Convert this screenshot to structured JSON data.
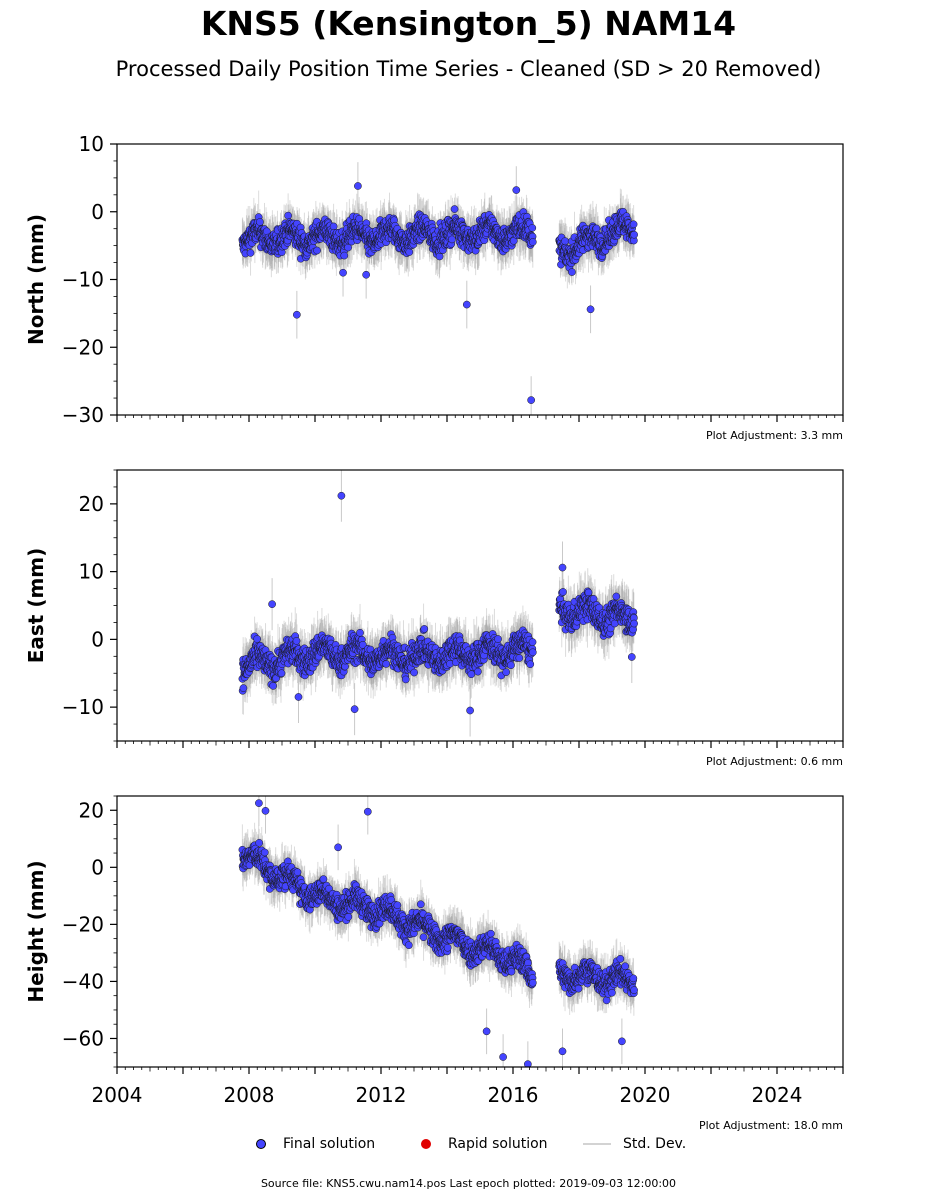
{
  "chart_data": {
    "type": "scatter",
    "title": "KNS5 (Kensington_5) NAM14",
    "subtitle": "Processed Daily Position Time Series - Cleaned (SD > 20 Removed)",
    "x_ticks": [
      2004,
      2008,
      2012,
      2016,
      2020,
      2024
    ],
    "xlim": [
      2004,
      2026
    ],
    "legend": [
      {
        "label": "Final solution",
        "color": "#4444ff"
      },
      {
        "label": "Rapid solution",
        "color": "#e00000"
      },
      {
        "label": "Std. Dev.",
        "color": "#d3d3d3"
      }
    ],
    "source_text": "Source file: KNS5.cwu.nam14.pos  Last epoch plotted: 2019-09-03 12:00:00",
    "panels": [
      {
        "ylabel": "North (mm)",
        "ylim": [
          -30,
          10
        ],
        "yticks": [
          10,
          0,
          -10,
          -20,
          -30
        ],
        "adjustment": "Plot Adjustment: 3.3 mm",
        "segments": [
          [
            2007.8,
            2016.6
          ],
          [
            2017.4,
            2019.67
          ]
        ],
        "trend": [
          [
            2007.8,
            -4
          ],
          [
            2016.6,
            -3
          ],
          [
            2017.4,
            -6
          ],
          [
            2018.5,
            -4
          ],
          [
            2019.67,
            -2
          ]
        ],
        "spread": 2.2,
        "outliers": [
          [
            2009.45,
            -15.2
          ],
          [
            2014.6,
            -13.7
          ],
          [
            2016.55,
            -27.8
          ],
          [
            2018.35,
            -14.4
          ],
          [
            2011.3,
            3.8
          ],
          [
            2010.85,
            -9.0
          ],
          [
            2011.55,
            -9.3
          ],
          [
            2016.1,
            3.2
          ]
        ]
      },
      {
        "ylabel": "East (mm)",
        "ylim": [
          -15,
          25
        ],
        "yticks": [
          20,
          10,
          0,
          -10
        ],
        "adjustment": "Plot Adjustment: 0.6 mm",
        "segments": [
          [
            2007.8,
            2016.6
          ],
          [
            2017.4,
            2019.67
          ]
        ],
        "trend": [
          [
            2007.8,
            -4
          ],
          [
            2010.0,
            -2
          ],
          [
            2013.0,
            -2.5
          ],
          [
            2016.6,
            -1.5
          ],
          [
            2017.4,
            4.5
          ],
          [
            2019.67,
            3
          ]
        ],
        "spread": 2.4,
        "outliers": [
          [
            2010.8,
            21.2
          ],
          [
            2011.2,
            -10.3
          ],
          [
            2014.7,
            -10.5
          ],
          [
            2017.5,
            10.6
          ],
          [
            2019.6,
            -2.6
          ],
          [
            2009.5,
            -8.5
          ],
          [
            2008.7,
            5.2
          ]
        ]
      },
      {
        "ylabel": "Height (mm)",
        "ylim": [
          -70,
          25
        ],
        "yticks": [
          20,
          0,
          -20,
          -40,
          -60
        ],
        "adjustment": "Plot Adjustment: 18.0 mm",
        "segments": [
          [
            2007.8,
            2016.6
          ],
          [
            2017.4,
            2019.67
          ]
        ],
        "trend": [
          [
            2007.8,
            5
          ],
          [
            2008.5,
            0
          ],
          [
            2010.0,
            -10
          ],
          [
            2012.0,
            -15
          ],
          [
            2014.0,
            -25
          ],
          [
            2016.0,
            -32
          ],
          [
            2016.6,
            -38
          ],
          [
            2017.4,
            -37
          ],
          [
            2019.67,
            -40
          ]
        ],
        "spread": 5,
        "outliers": [
          [
            2008.3,
            22.5
          ],
          [
            2008.5,
            19.8
          ],
          [
            2011.6,
            19.5
          ],
          [
            2015.2,
            -57.5
          ],
          [
            2015.7,
            -66.5
          ],
          [
            2016.45,
            -69
          ],
          [
            2017.5,
            -64.5
          ],
          [
            2019.3,
            -61
          ],
          [
            2010.7,
            7
          ]
        ]
      }
    ]
  }
}
